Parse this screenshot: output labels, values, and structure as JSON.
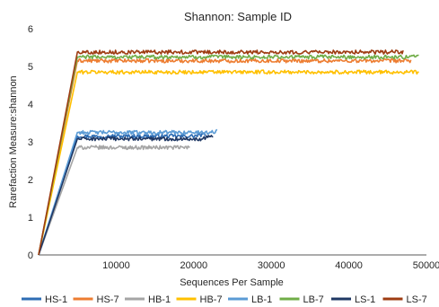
{
  "chart_data": {
    "type": "line",
    "title": "Shannon: Sample ID",
    "xlabel": "Sequences Per Sample",
    "ylabel": "Rarefaction Measure:shannon",
    "xlim": [
      0,
      50000
    ],
    "ylim": [
      0,
      6
    ],
    "x_ticks": [
      "10000",
      "20000",
      "30000",
      "40000",
      "50000"
    ],
    "y_ticks": [
      "0",
      "1",
      "2",
      "3",
      "4",
      "5",
      "6"
    ],
    "grid": false,
    "legend_position": "bottom",
    "series": [
      {
        "name": "HS-1",
        "color": "#2E6DB4",
        "points": [
          [
            0,
            0
          ],
          [
            5000,
            3.15
          ],
          [
            20000,
            3.15
          ],
          [
            21500,
            3.2
          ]
        ]
      },
      {
        "name": "HS-7",
        "color": "#ED7D31",
        "points": [
          [
            0,
            0
          ],
          [
            5000,
            5.15
          ],
          [
            48000,
            5.15
          ]
        ]
      },
      {
        "name": "HB-1",
        "color": "#A5A5A5",
        "points": [
          [
            0,
            0
          ],
          [
            5000,
            2.85
          ],
          [
            19500,
            2.85
          ]
        ]
      },
      {
        "name": "HB-7",
        "color": "#FFC000",
        "points": [
          [
            0,
            0
          ],
          [
            5000,
            4.85
          ],
          [
            49000,
            4.85
          ]
        ]
      },
      {
        "name": "LB-1",
        "color": "#5B9BD5",
        "points": [
          [
            0,
            0
          ],
          [
            5000,
            3.25
          ],
          [
            22000,
            3.25
          ],
          [
            23000,
            3.28
          ]
        ]
      },
      {
        "name": "LB-7",
        "color": "#70AD47",
        "points": [
          [
            0,
            0
          ],
          [
            5000,
            5.25
          ],
          [
            48000,
            5.25
          ],
          [
            49000,
            5.3
          ]
        ]
      },
      {
        "name": "LS-1",
        "color": "#1F3864",
        "points": [
          [
            0,
            0
          ],
          [
            5000,
            3.08
          ],
          [
            21000,
            3.08
          ],
          [
            22500,
            3.18
          ]
        ]
      },
      {
        "name": "LS-7",
        "color": "#9E3C12",
        "points": [
          [
            0,
            0
          ],
          [
            5000,
            5.38
          ],
          [
            47000,
            5.38
          ]
        ]
      }
    ]
  }
}
